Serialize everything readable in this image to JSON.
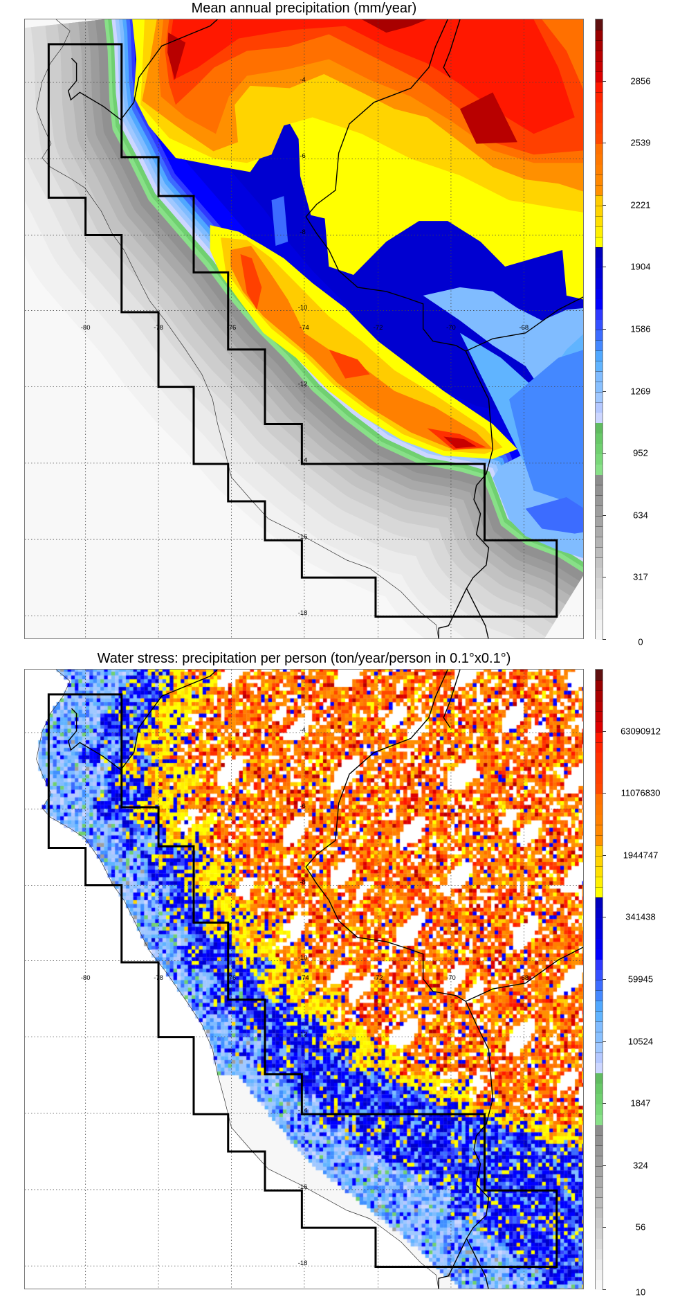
{
  "chart_data": [
    {
      "type": "heatmap",
      "title": "Mean annual precipitation (mm/year)",
      "style": "filled-contour",
      "lon_tick_labels": [
        "-80",
        "-78",
        "-76",
        "-74",
        "-72",
        "-70",
        "-68"
      ],
      "lat_tick_labels": [
        "-4",
        "-6",
        "-8",
        "-10",
        "-12",
        "-14",
        "-16",
        "-18"
      ],
      "xlim": [
        -81.7,
        -66.3
      ],
      "ylim": [
        -18.6,
        -2.3
      ],
      "colorbar": {
        "tick_labels": [
          "0",
          "317",
          "634",
          "952",
          "1269",
          "1586",
          "1904",
          "2221",
          "2539",
          "2856"
        ],
        "range": [
          0,
          3173
        ],
        "levels": 60
      },
      "grid": true
    },
    {
      "type": "heatmap",
      "title": "Water stress: precipitation per person (ton/year/person in 0.1°x0.1°)",
      "style": "gridded-cells",
      "lon_tick_labels": [
        "-80",
        "-78",
        "-76",
        "-74",
        "-72",
        "-70",
        "-68"
      ],
      "lat_tick_labels": [
        "-4",
        "-6",
        "-8",
        "-10",
        "-12",
        "-14",
        "-16",
        "-18"
      ],
      "xlim": [
        -81.7,
        -66.3
      ],
      "ylim": [
        -18.6,
        -2.3
      ],
      "colorbar": {
        "tick_labels": [
          "10",
          "56",
          "324",
          "1847",
          "10524",
          "59945",
          "341438",
          "1944747",
          "11076830",
          "63090912"
        ],
        "scale": "log",
        "levels": 60
      },
      "grid": true
    }
  ],
  "palette": [
    "#f8f8f8",
    "#f2f2f2",
    "#ececec",
    "#e4e4e4",
    "#dcdcdc",
    "#d4d4d4",
    "#cccccc",
    "#c4c4c4",
    "#bcbcbc",
    "#b4b4b4",
    "#acacac",
    "#a4a4a4",
    "#9e9e9e",
    "#989898",
    "#929292",
    "#8c8c8c",
    "#88e088",
    "#7ad87a",
    "#70d070",
    "#68c868",
    "#60bb60",
    "#ccd6ff",
    "#b4c8ff",
    "#a0c8ff",
    "#88c0ff",
    "#80bcff",
    "#60b4ff",
    "#50a8ff",
    "#4488ff",
    "#3c6cff",
    "#3450ff",
    "#2e38ff",
    "#0000ff",
    "#0000f0",
    "#0000e0",
    "#0000d4",
    "#0000c8",
    "#0000bc",
    "#ffff00",
    "#fff000",
    "#ffe000",
    "#ffd400",
    "#ffcc00",
    "#ff9000",
    "#ff8800",
    "#ff8000",
    "#ff7800",
    "#ff7000",
    "#ff4800",
    "#ff4000",
    "#ff3800",
    "#ff3000",
    "#ff2400",
    "#ff1800",
    "#dd0000",
    "#c80000",
    "#b80000",
    "#a80000",
    "#980000",
    "#601010"
  ]
}
